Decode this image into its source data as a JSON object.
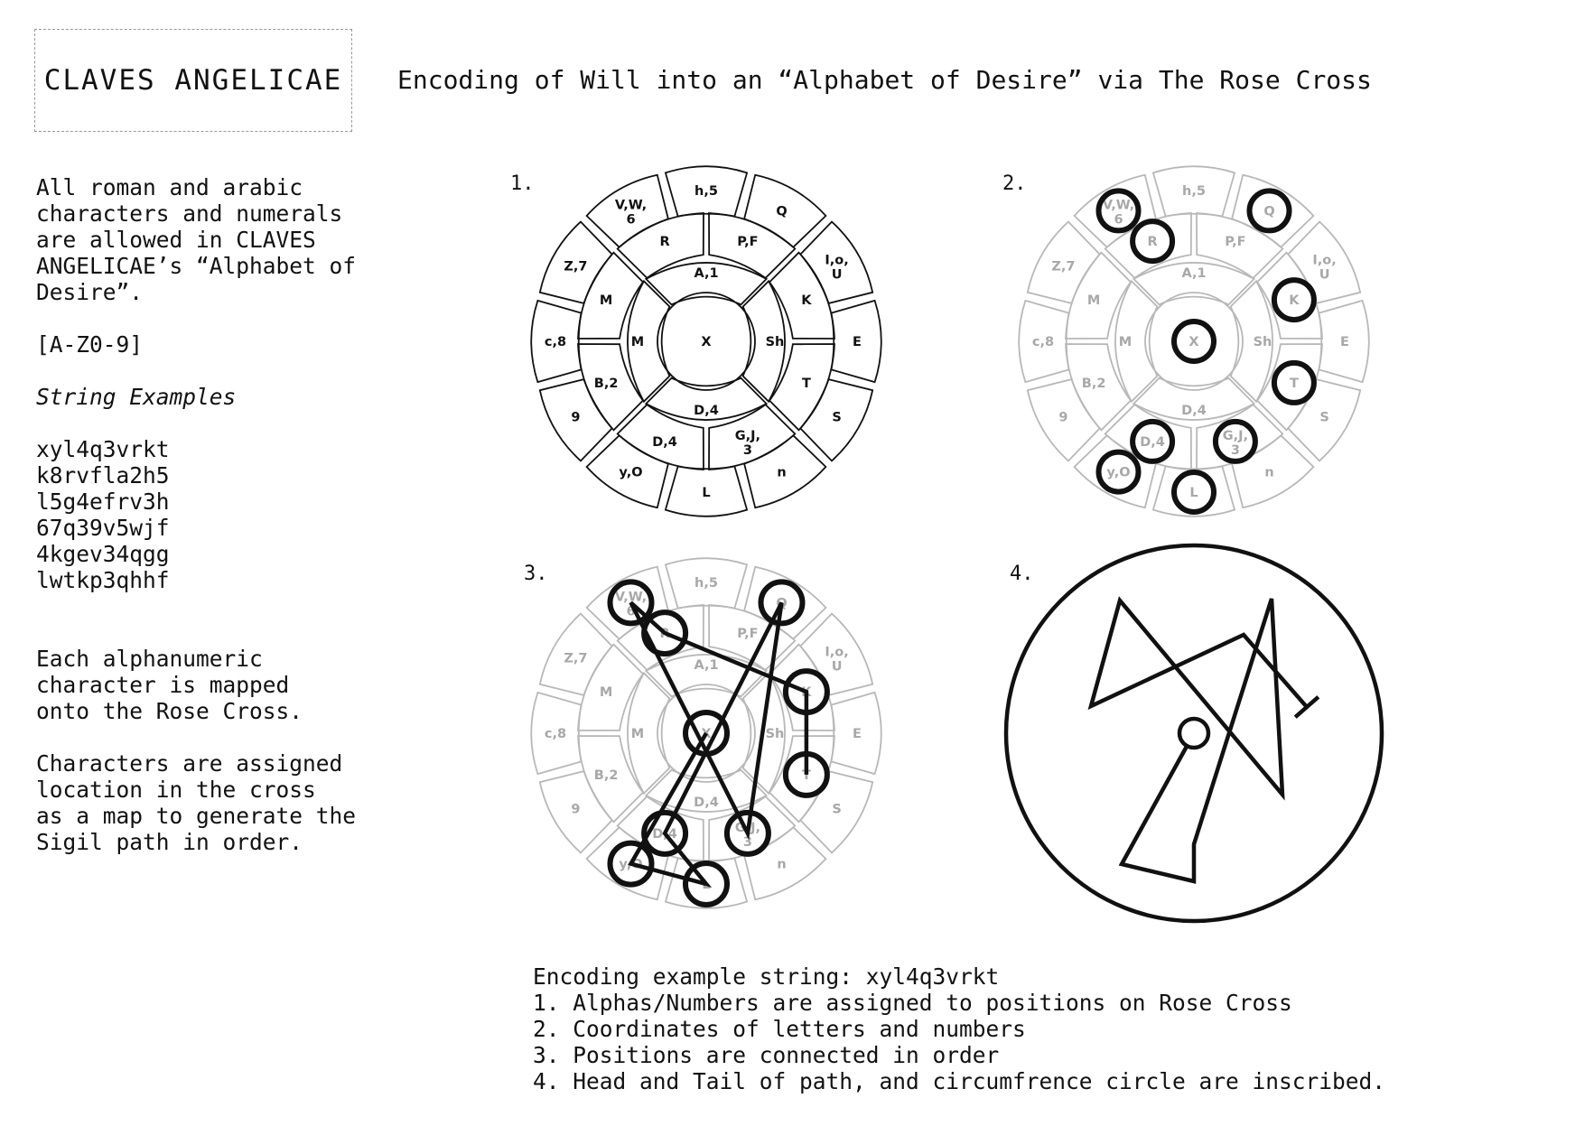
{
  "title": "CLAVES ANGELICAE",
  "subtitle": "Encoding of Will into an “Alphabet of Desire” via The Rose Cross",
  "left": {
    "intro": "All roman and arabic\ncharacters and numerals\nare allowed in CLAVES\nANGELICAE’s “Alphabet of\nDesire”.",
    "charset": "[A-Z0-9]",
    "examples_heading": "String Examples",
    "examples": [
      "xyl4q3vrkt",
      "k8rvfla2h5",
      "l5g4efrv3h",
      "67q39v5wjf",
      "4kgev34qgg",
      "lwtkp3qhhf"
    ],
    "mapping_note": "Each alphanumeric\ncharacter is mapped\nonto the Rose Cross.",
    "location_note": "Characters are assigned\nlocation in the cross\nas a map to generate the\nSigil path in order."
  },
  "panels": [
    {
      "number": "1."
    },
    {
      "number": "2."
    },
    {
      "number": "3."
    },
    {
      "number": "4."
    }
  ],
  "rose_cross": {
    "center": "X",
    "inner": [
      "A,1",
      "Sh",
      "D,4",
      "M"
    ],
    "middle": [
      "P,F",
      "K",
      "T",
      "G,J,\n3",
      "D,4",
      "B,2",
      "M",
      "R"
    ],
    "outer": [
      "h,5",
      "Q",
      "I,o,\nU",
      "E",
      "S",
      "n",
      "L",
      "y,O",
      "9",
      "c,8",
      "Z,7",
      "V,W,\n6"
    ]
  },
  "bottom": {
    "heading": "Encoding example string: xyl4q3vrkt",
    "steps": [
      "1. Alphas/Numbers are assigned to positions on Rose Cross",
      "2. Coordinates of letters and numbers",
      "3. Positions are connected in order",
      "4. Head and Tail of path, and circumfrence circle are inscribed."
    ]
  }
}
